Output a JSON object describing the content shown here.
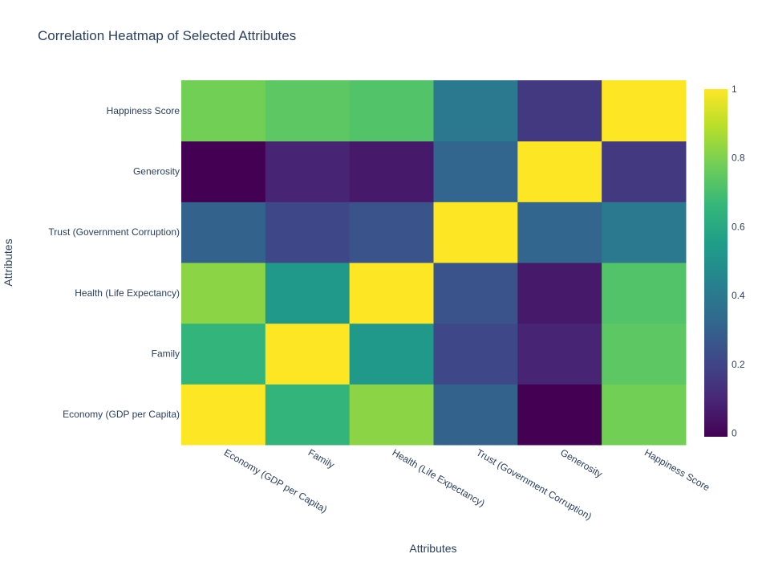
{
  "chart_data": {
    "type": "heatmap",
    "title": "Correlation Heatmap of Selected Attributes",
    "xlabel": "Attributes",
    "ylabel": "Attributes",
    "x_categories": [
      "Economy (GDP per Capita)",
      "Family",
      "Health (Life Expectancy)",
      "Trust (Government Corruption)",
      "Generosity",
      "Happiness Score"
    ],
    "y_categories": [
      "Economy (GDP per Capita)",
      "Family",
      "Health (Life Expectancy)",
      "Trust (Government Corruption)",
      "Generosity",
      "Happiness Score"
    ],
    "z": [
      [
        1.0,
        0.65,
        0.82,
        0.31,
        -0.01,
        0.78
      ],
      [
        0.65,
        1.0,
        0.53,
        0.21,
        0.09,
        0.74
      ],
      [
        0.82,
        0.53,
        1.0,
        0.25,
        0.06,
        0.72
      ],
      [
        0.31,
        0.21,
        0.25,
        1.0,
        0.32,
        0.4
      ],
      [
        -0.01,
        0.09,
        0.06,
        0.32,
        1.0,
        0.16
      ],
      [
        0.78,
        0.74,
        0.72,
        0.4,
        0.16,
        1.0
      ]
    ],
    "zrange": [
      -0.01,
      1.0
    ],
    "colorscale": "Viridis",
    "colorbar": {
      "ticks": [
        0,
        0.2,
        0.4,
        0.6,
        0.8,
        1
      ],
      "tick_labels": [
        "0",
        "0.2",
        "0.4",
        "0.6",
        "0.8",
        "1"
      ]
    }
  }
}
